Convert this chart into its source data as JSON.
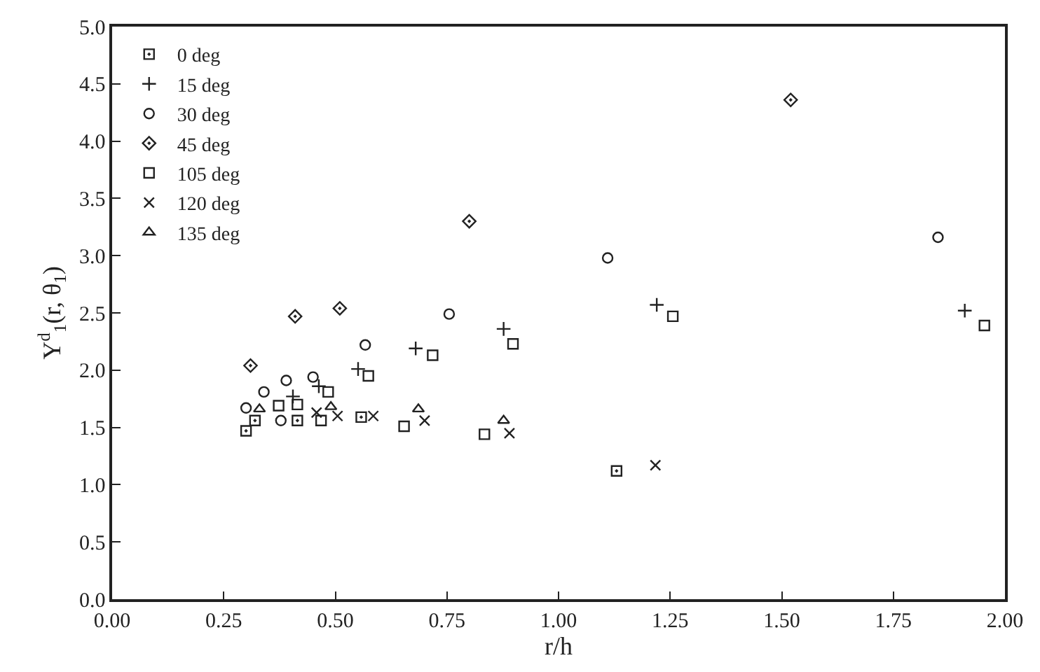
{
  "chart_data": {
    "type": "scatter",
    "xlabel": "r/h",
    "ylabel": "Y$^{d}$$_{1}$(r, θ$_{1}$)",
    "xlim": [
      0,
      2
    ],
    "xticks": [
      {
        "value": 0,
        "label": "0.00"
      },
      0.25,
      {
        "value": 0.5,
        "label": "0.50"
      },
      0.75,
      {
        "value": 1,
        "label": "1.00"
      },
      1.25,
      {
        "value": 1.5,
        "label": "1.50"
      },
      1.75,
      {
        "value": 2,
        "label": "2.00"
      }
    ],
    "ylim": [
      0,
      5
    ],
    "yticks": [
      {
        "value": 0,
        "label": "0.0"
      },
      0.5,
      {
        "value": 1,
        "label": "1.0"
      },
      1.5,
      {
        "value": 2,
        "label": "2.0"
      },
      2.5,
      {
        "value": 3,
        "label": "3.0"
      },
      3.5,
      {
        "value": 4,
        "label": "4.0"
      },
      4.5,
      {
        "value": 5,
        "label": "5.0"
      }
    ],
    "legend": "top left",
    "series": [
      {
        "name": "0 deg",
        "color": "#222222",
        "marker": "square-dot",
        "x": [
          0.3,
          0.32,
          0.415,
          0.558,
          1.13
        ],
        "values": [
          1.47,
          1.56,
          1.56,
          1.59,
          1.12
        ]
      },
      {
        "name": "15 deg",
        "color": "#222222",
        "marker": "cross",
        "x": [
          0.405,
          0.463,
          0.551,
          0.68,
          0.877,
          1.22,
          1.91
        ],
        "values": [
          1.77,
          1.86,
          2.01,
          2.19,
          2.36,
          2.57,
          2.52
        ]
      },
      {
        "name": "30 deg",
        "color": "#222222",
        "marker": "circle",
        "x": [
          0.3,
          0.34,
          0.39,
          0.45,
          0.567,
          0.755,
          1.11,
          1.85,
          0.378
        ],
        "values": [
          1.67,
          1.81,
          1.91,
          1.94,
          2.22,
          2.49,
          2.98,
          3.16,
          1.56
        ]
      },
      {
        "name": "45 deg",
        "color": "#222222",
        "marker": "diamond",
        "x": [
          0.31,
          0.41,
          0.51,
          0.8,
          1.52
        ],
        "values": [
          2.04,
          2.47,
          2.54,
          3.3,
          4.36
        ]
      },
      {
        "name": "105 deg",
        "color": "#222222",
        "marker": "square",
        "x": [
          0.373,
          0.415,
          0.468,
          0.484,
          0.574,
          0.654,
          0.718,
          0.834,
          0.898,
          1.256,
          1.954
        ],
        "values": [
          1.69,
          1.7,
          1.56,
          1.81,
          1.95,
          1.51,
          2.13,
          1.44,
          2.23,
          2.47,
          2.39
        ]
      },
      {
        "name": "120 deg",
        "color": "#222222",
        "marker": "x",
        "x": [
          0.458,
          0.505,
          0.585,
          0.7,
          0.89,
          1.217
        ],
        "values": [
          1.63,
          1.6,
          1.6,
          1.56,
          1.45,
          1.17
        ]
      },
      {
        "name": "135 deg",
        "color": "#222222",
        "marker": "triangle",
        "x": [
          0.33,
          0.49,
          0.686,
          0.877
        ],
        "values": [
          1.66,
          1.68,
          1.66,
          1.56
        ]
      }
    ]
  }
}
